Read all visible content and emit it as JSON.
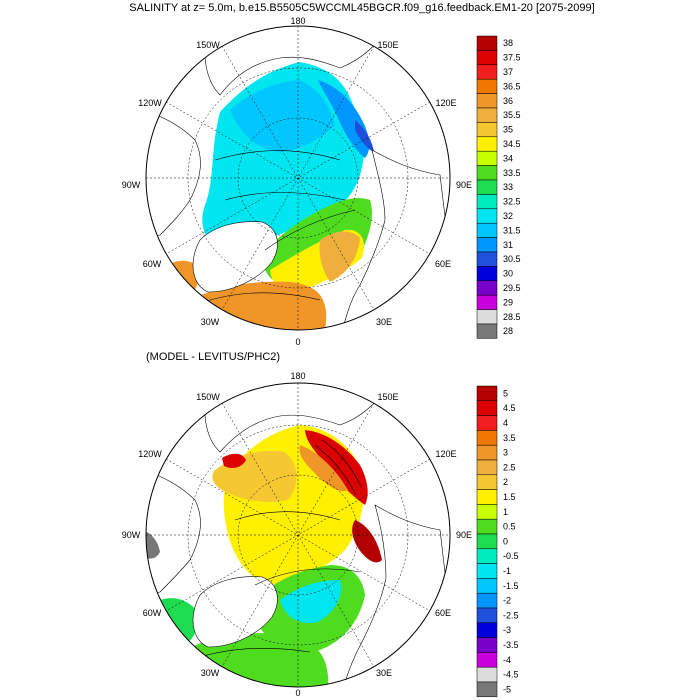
{
  "title": "SALINITY at z=   5.0m, b.e15.B5505C5WCCML45BGCR.f09_g16.feedback.EM1-20 [2075-2099]",
  "subtitle": "(MODEL - LEVITUS/PHC2)",
  "longitude_labels": {
    "top": "180",
    "upper_left": "150W",
    "upper_right": "150E",
    "left_upper": "120W",
    "right_upper": "120E",
    "left": "90W",
    "right": "90E",
    "left_lower": "60W",
    "right_lower": "60E",
    "lower_left": "30W",
    "lower_right": "30E",
    "bottom": "0"
  },
  "colorbar_top": {
    "labels": [
      "38",
      "37.5",
      "37",
      "36.5",
      "36",
      "35.5",
      "35",
      "34.5",
      "34",
      "33.5",
      "33",
      "32.5",
      "32",
      "31.5",
      "31",
      "30.5",
      "30",
      "29.5",
      "29",
      "28.5",
      "28"
    ],
    "colors": [
      "#b40000",
      "#dc0000",
      "#f01e1e",
      "#f07800",
      "#f09628",
      "#f0af3c",
      "#f5c832",
      "#fff000",
      "#c8ff00",
      "#50dc1e",
      "#1edc50",
      "#00ebbe",
      "#00e6f0",
      "#00c8ff",
      "#0096ff",
      "#1e50dc",
      "#0000dc",
      "#7800c8",
      "#c800dc",
      "#dcdcdc",
      "#787878"
    ]
  },
  "colorbar_bottom": {
    "labels": [
      "5",
      "4.5",
      "4",
      "3.5",
      "3",
      "2.5",
      "2",
      "1.5",
      "1",
      "0.5",
      "0",
      "-0.5",
      "-1",
      "-1.5",
      "-2",
      "-2.5",
      "-3",
      "-3.5",
      "-4",
      "-4.5",
      "-5"
    ],
    "colors": [
      "#b40000",
      "#dc0000",
      "#f01e1e",
      "#f07800",
      "#f09628",
      "#f0af3c",
      "#f5c832",
      "#fff000",
      "#c8ff00",
      "#50dc1e",
      "#1edc50",
      "#00ebbe",
      "#00e6f0",
      "#00c8ff",
      "#0096ff",
      "#1e50dc",
      "#0000dc",
      "#7800c8",
      "#c800dc",
      "#dcdcdc",
      "#787878"
    ]
  }
}
